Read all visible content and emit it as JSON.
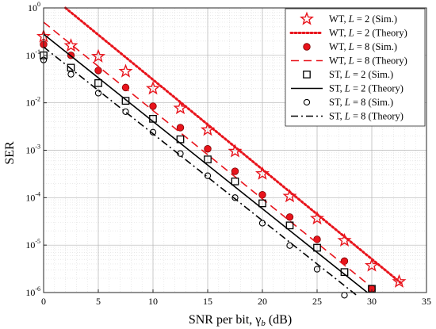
{
  "chart_data": {
    "type": "line",
    "title": "",
    "xlabel": "SNR per bit, γ",
    "xlabel_sub": "b",
    "xlabel_unit": " (dB)",
    "ylabel": "SER",
    "xlim": [
      0,
      35
    ],
    "ylim": [
      1e-06,
      1
    ],
    "yscale": "log",
    "grid": true,
    "legend_position": "top-right",
    "xticks": [
      0,
      5,
      10,
      15,
      20,
      25,
      30,
      35
    ],
    "yticks": [
      {
        "value": 1,
        "base": "10",
        "exp": "0"
      },
      {
        "value": 0.1,
        "base": "10",
        "exp": "-1"
      },
      {
        "value": 0.01,
        "base": "10",
        "exp": "-2"
      },
      {
        "value": 0.001,
        "base": "10",
        "exp": "-3"
      },
      {
        "value": 0.0001,
        "base": "10",
        "exp": "-4"
      },
      {
        "value": 1e-05,
        "base": "10",
        "exp": "-5"
      },
      {
        "value": 1e-06,
        "base": "10",
        "exp": "-6"
      }
    ],
    "series": [
      {
        "name": "WT, L = 2 (Sim.)",
        "legend": {
          "pre": "WT, ",
          "var": "L",
          "post": " = 2 (Sim.)"
        },
        "style": "marker",
        "marker": "star",
        "color": "#e8141c",
        "x": [
          0,
          2.5,
          5,
          7.5,
          10,
          12.5,
          15,
          17.5,
          20,
          22.5,
          25,
          27.5,
          30,
          32.5
        ],
        "y": [
          0.25,
          0.16,
          0.095,
          0.046,
          0.02,
          0.0077,
          0.0027,
          0.00095,
          0.00032,
          0.000107,
          3.65e-05,
          1.25e-05,
          3.7e-06,
          1.7e-06
        ]
      },
      {
        "name": "WT, L = 2 (Theory)",
        "legend": {
          "pre": "WT, ",
          "var": "L",
          "post": " = 2 (Theory)"
        },
        "style": "line",
        "dash": "dotted",
        "color": "#e8141c",
        "x": [
          2,
          32.8
        ],
        "y": [
          1,
          1.5e-06
        ]
      },
      {
        "name": "WT, L = 8 (Sim.)",
        "legend": {
          "pre": "WT, ",
          "var": "L",
          "post": " = 8 (Sim.)"
        },
        "style": "marker",
        "marker": "circle-filled",
        "color": "#e8141c",
        "x": [
          0,
          2.5,
          5,
          7.5,
          10,
          12.5,
          15,
          17.5,
          20,
          22.5,
          25,
          27.5,
          30
        ],
        "y": [
          0.17,
          0.1,
          0.048,
          0.021,
          0.0085,
          0.003,
          0.00107,
          0.00036,
          0.000115,
          3.9e-05,
          1.32e-05,
          4.6e-06,
          1.2e-06
        ]
      },
      {
        "name": "WT, L = 8 (Theory)",
        "legend": {
          "pre": "WT, ",
          "var": "L",
          "post": " = 8 (Theory)"
        },
        "style": "line",
        "dash": "dashed",
        "color": "#e8141c",
        "x": [
          0,
          30.6
        ],
        "y": [
          0.5,
          1e-06
        ]
      },
      {
        "name": "ST, L = 2 (Sim.)",
        "legend": {
          "pre": "ST, ",
          "var": "L",
          "post": " = 2 (Sim.)"
        },
        "style": "marker",
        "marker": "square",
        "color": "#000000",
        "x": [
          0,
          2.5,
          5,
          7.5,
          10,
          12.5,
          15,
          17.5,
          20,
          22.5,
          25,
          27.5,
          30
        ],
        "y": [
          0.1,
          0.055,
          0.026,
          0.011,
          0.0046,
          0.0017,
          0.00064,
          0.00022,
          7.6e-05,
          2.6e-05,
          8.8e-06,
          2.7e-06,
          1.2e-06
        ]
      },
      {
        "name": "ST, L = 2 (Theory)",
        "legend": {
          "pre": "ST, ",
          "var": "L",
          "post": " = 2 (Theory)"
        },
        "style": "line",
        "dash": "solid",
        "color": "#000000",
        "x": [
          0,
          29.6
        ],
        "y": [
          0.28,
          1e-06
        ]
      },
      {
        "name": "ST, L = 8 (Sim.)",
        "legend": {
          "pre": "ST, ",
          "var": "L",
          "post": " = 8 (Sim.)"
        },
        "style": "marker",
        "marker": "circle-open",
        "color": "#000000",
        "x": [
          0,
          2.5,
          5,
          7.5,
          10,
          12.5,
          15,
          17.5,
          20,
          22.5,
          25,
          27.5
        ],
        "y": [
          0.08,
          0.04,
          0.016,
          0.0065,
          0.0024,
          0.00085,
          0.00029,
          0.0001,
          2.9e-05,
          9.8e-06,
          3.1e-06,
          8.8e-07
        ]
      },
      {
        "name": "ST, L = 8 (Theory)",
        "legend": {
          "pre": "ST, ",
          "var": "L",
          "post": " = 8 (Theory)"
        },
        "style": "line",
        "dash": "dashdot",
        "color": "#000000",
        "x": [
          0,
          28.6
        ],
        "y": [
          0.15,
          8.8e-07
        ]
      }
    ]
  }
}
